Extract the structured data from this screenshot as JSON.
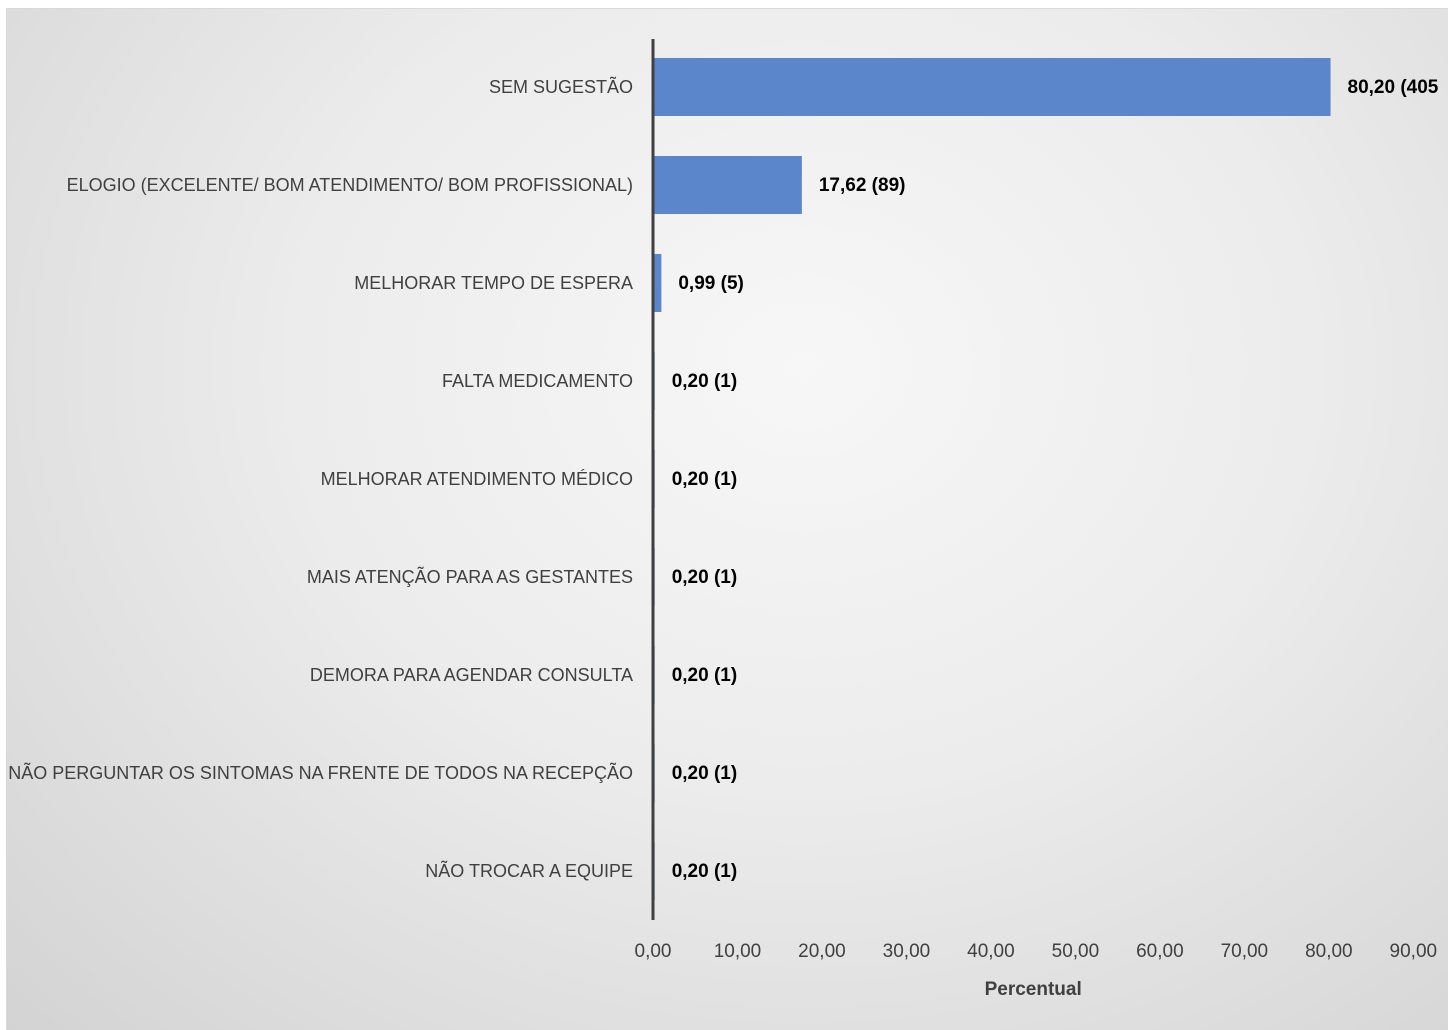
{
  "chart_data": {
    "type": "bar",
    "orientation": "horizontal",
    "categories": [
      "SEM SUGESTÃO",
      "ELOGIO (EXCELENTE/ BOM ATENDIMENTO/ BOM PROFISSIONAL)",
      "MELHORAR TEMPO DE ESPERA",
      "FALTA MEDICAMENTO",
      "MELHORAR ATENDIMENTO MÉDICO",
      "MAIS ATENÇÃO PARA AS GESTANTES",
      "DEMORA PARA AGENDAR CONSULTA",
      "NÃO PERGUNTAR OS SINTOMAS NA FRENTE DE TODOS NA RECEPÇÃO",
      "NÃO TROCAR A EQUIPE"
    ],
    "values": [
      80.2,
      17.62,
      0.99,
      0.2,
      0.2,
      0.2,
      0.2,
      0.2,
      0.2
    ],
    "data_labels": [
      "80,20 (405",
      "17,62 (89)",
      "0,99 (5)",
      "0,20 (1)",
      "0,20 (1)",
      "0,20 (1)",
      "0,20 (1)",
      "0,20 (1)",
      "0,20 (1)"
    ],
    "x_ticks": [
      "0,00",
      "10,00",
      "20,00",
      "30,00",
      "40,00",
      "50,00",
      "60,00",
      "70,00",
      "80,00",
      "90,00"
    ],
    "xlim": [
      0,
      90
    ],
    "xlabel": "Percentual",
    "ylabel": "",
    "title": "",
    "grid": false,
    "legend": "none",
    "bar_color": "#5b86cb",
    "axis_color": "#404040"
  }
}
